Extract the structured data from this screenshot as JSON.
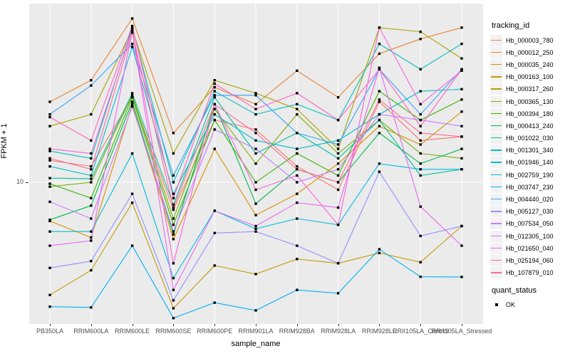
{
  "chart_data": {
    "type": "line",
    "title": "",
    "xlabel": "sample_name",
    "ylabel": "FPKM + 1",
    "y_scale": "log10",
    "y_tick_labels": [
      "10"
    ],
    "y_tick_values": [
      10
    ],
    "ylim": [
      1.35,
      120
    ],
    "grid": "major-white-on-gray",
    "legend_position": "right",
    "point_marker": "black-square",
    "categories": [
      "PB350LA",
      "RRIM600LA",
      "RRIM600LE",
      "RRIM600SE",
      "RRIM600PE",
      "RRIM901LA",
      "RRIM928BA",
      "RRIM928LA",
      "RRIM928LE",
      "RRII105LA_Control",
      "RRII105LA_Stressed"
    ],
    "series": [
      {
        "name": "Hb_000003_780",
        "color": "#F8766D",
        "values": [
          13.6,
          12.5,
          33,
          6.8,
          24,
          21,
          12.5,
          9,
          31,
          18,
          19
        ]
      },
      {
        "name": "Hb_000012_250",
        "color": "#EA8331",
        "values": [
          31,
          42,
          100,
          20,
          38,
          30,
          48,
          33,
          61,
          75,
          88
        ]
      },
      {
        "name": "Hb_000035_240",
        "color": "#D89000",
        "values": [
          5.8,
          4.6,
          30,
          4.5,
          16,
          6.3,
          8.5,
          13,
          22,
          17,
          27
        ]
      },
      {
        "name": "Hb_000163_100",
        "color": "#C09B00",
        "values": [
          2.05,
          2.9,
          7.5,
          1.7,
          3.1,
          2.75,
          3.4,
          3.2,
          3.7,
          3.25,
          5.4
        ]
      },
      {
        "name": "Hb_000317_260",
        "color": "#A3A500",
        "values": [
          22,
          26,
          86,
          15,
          42,
          35,
          28,
          16,
          88,
          83,
          57
        ]
      },
      {
        "name": "Hb_000365_130",
        "color": "#7CAE00",
        "values": [
          9.4,
          10,
          34,
          6,
          28,
          13,
          26,
          15,
          24,
          15,
          14
        ]
      },
      {
        "name": "Hb_000394_180",
        "color": "#39B600",
        "values": [
          9.8,
          8,
          33,
          5.5,
          24,
          10,
          15,
          11,
          36,
          24,
          32
        ]
      },
      {
        "name": "Hb_000413_240",
        "color": "#00BB4E",
        "values": [
          5.9,
          7.2,
          31,
          4.8,
          30,
          7.4,
          12,
          10,
          20,
          13,
          16
        ]
      },
      {
        "name": "Hb_001022_030",
        "color": "#00C19F",
        "values": [
          10.6,
          10.5,
          35,
          7.3,
          33,
          15,
          20,
          14,
          24,
          11,
          12
        ]
      },
      {
        "name": "Hb_001301_340",
        "color": "#00C0BE",
        "values": [
          15.5,
          14,
          88,
          10,
          36,
          26,
          30,
          24,
          70,
          49,
          70
        ]
      },
      {
        "name": "Hb_001946_140",
        "color": "#00BDD0",
        "values": [
          12.5,
          11,
          67,
          8.5,
          26,
          18,
          16,
          18,
          26,
          36,
          37
        ]
      },
      {
        "name": "Hb_002759_190",
        "color": "#00BAE0",
        "values": [
          5,
          5,
          15,
          2.6,
          6.7,
          5.2,
          6,
          5.5,
          13,
          12,
          12
        ]
      },
      {
        "name": "Hb_003747_230",
        "color": "#00B0F6",
        "values": [
          1.74,
          1.72,
          4.1,
          1.48,
          1.84,
          1.65,
          2.2,
          2.1,
          3.9,
          2.65,
          2.64
        ]
      },
      {
        "name": "Hb_004440_020",
        "color": "#35A2FF",
        "values": [
          26,
          39,
          70,
          11,
          34,
          34,
          20,
          17,
          49,
          26,
          49
        ]
      },
      {
        "name": "Hb_005127_030",
        "color": "#9590FF",
        "values": [
          3,
          3.3,
          8.5,
          1.9,
          4.9,
          5,
          4.1,
          3.2,
          11.6,
          4.7,
          5.4
        ]
      },
      {
        "name": "Hb_007534_050",
        "color": "#C77CFF",
        "values": [
          7.6,
          6,
          29,
          5,
          21,
          16,
          10,
          12,
          26,
          24,
          22
        ]
      },
      {
        "name": "Hb_012305_100",
        "color": "#E76BF3",
        "values": [
          4.1,
          4.4,
          84,
          2.2,
          6.7,
          5.4,
          7.5,
          7,
          50,
          7.1,
          4.1
        ]
      },
      {
        "name": "Hb_021650_040",
        "color": "#FA62DB",
        "values": [
          16,
          15,
          85,
          3.2,
          30,
          9,
          11,
          5.5,
          88,
          30,
          48
        ]
      },
      {
        "name": "Hb_025194_060",
        "color": "#FF62BC",
        "values": [
          25,
          18,
          90,
          8,
          40,
          28,
          35,
          24,
          49,
          22,
          49
        ]
      },
      {
        "name": "Hb_107879_010",
        "color": "#FF6A98",
        "values": [
          14,
          12,
          82,
          7,
          30,
          20,
          12,
          10,
          32,
          20,
          19
        ]
      }
    ]
  },
  "legend": {
    "tracking_title": "tracking_id",
    "quant_title": "quant_status",
    "quant_items": [
      {
        "label": "OK",
        "marker": "black-square"
      }
    ]
  },
  "axes": {
    "x_title": "sample_name",
    "y_title": "FPKM + 1",
    "y_tick": "10"
  },
  "colors": {
    "panel_background": "#EBEBEB",
    "gridline": "#FFFFFF",
    "axis_text": "#4D4D4D",
    "point": "#000000",
    "page_background": "#FFFFFF"
  }
}
